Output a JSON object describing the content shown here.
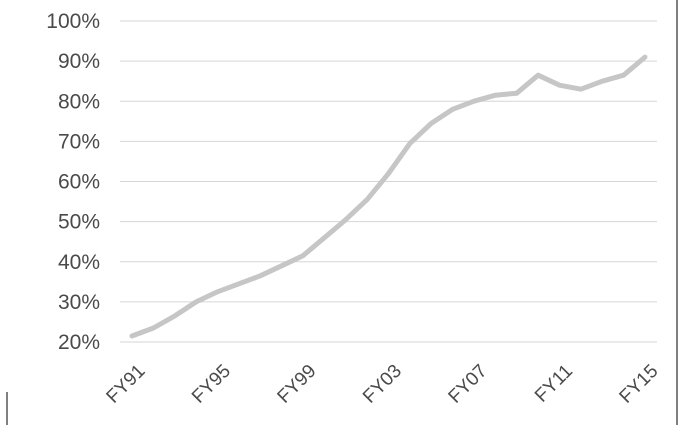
{
  "chart_data": {
    "type": "line",
    "title": "",
    "xlabel": "",
    "ylabel": "",
    "ylim": [
      0.2,
      1.0
    ],
    "y_ticks": [
      "20%",
      "30%",
      "40%",
      "50%",
      "60%",
      "70%",
      "80%",
      "90%",
      "100%"
    ],
    "x_tick_labels": [
      "FY91",
      "FY95",
      "FY99",
      "FY03",
      "FY07",
      "FY11",
      "FY15"
    ],
    "grid": true,
    "legend": "none",
    "x": [
      "FY91",
      "FY92",
      "FY93",
      "FY94",
      "FY95",
      "FY96",
      "FY97",
      "FY98",
      "FY99",
      "FY00",
      "FY01",
      "FY02",
      "FY03",
      "FY04",
      "FY05",
      "FY06",
      "FY07",
      "FY08",
      "FY09",
      "FY10",
      "FY11",
      "FY12",
      "FY13",
      "FY14",
      "FY15"
    ],
    "series": [
      {
        "values": [
          0.215,
          0.235,
          0.265,
          0.3,
          0.325,
          0.345,
          0.365,
          0.39,
          0.415,
          0.46,
          0.505,
          0.555,
          0.62,
          0.695,
          0.745,
          0.78,
          0.8,
          0.815,
          0.82,
          0.865,
          0.84,
          0.83,
          0.85,
          0.865,
          0.91
        ],
        "color": "#c6c6c6"
      }
    ]
  }
}
